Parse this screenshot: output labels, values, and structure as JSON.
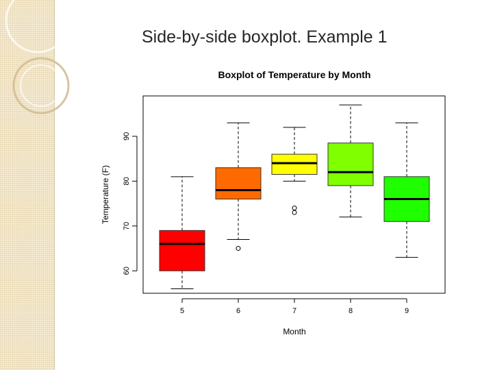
{
  "slide": {
    "title": "Side-by-side boxplot. Example 1"
  },
  "chart_data": {
    "type": "boxplot",
    "title": "Boxplot of Temperature by Month",
    "xlabel": "Month",
    "ylabel": "Temperature (F)",
    "categories": [
      "5",
      "6",
      "7",
      "8",
      "9"
    ],
    "y_ticks": [
      60,
      70,
      80,
      90
    ],
    "ylim": [
      55,
      99
    ],
    "boxes": [
      {
        "category": "5",
        "whisker_low": 56,
        "q1": 60,
        "median": 66,
        "q3": 69,
        "whisker_high": 81,
        "outliers": [],
        "color": "#ff0000"
      },
      {
        "category": "6",
        "whisker_low": 67,
        "q1": 76,
        "median": 78,
        "q3": 83,
        "whisker_high": 93,
        "outliers": [
          65
        ],
        "color": "#ff6a00"
      },
      {
        "category": "7",
        "whisker_low": 80,
        "q1": 81.5,
        "median": 84,
        "q3": 86,
        "whisker_high": 92,
        "outliers": [
          73,
          74
        ],
        "color": "#ffff00"
      },
      {
        "category": "8",
        "whisker_low": 72,
        "q1": 79,
        "median": 82,
        "q3": 88.5,
        "whisker_high": 97,
        "outliers": [],
        "color": "#7fff00"
      },
      {
        "category": "9",
        "whisker_low": 63,
        "q1": 71,
        "median": 76,
        "q3": 81,
        "whisker_high": 93,
        "outliers": [],
        "color": "#1fff00"
      }
    ],
    "grid": false,
    "legend": "none"
  }
}
